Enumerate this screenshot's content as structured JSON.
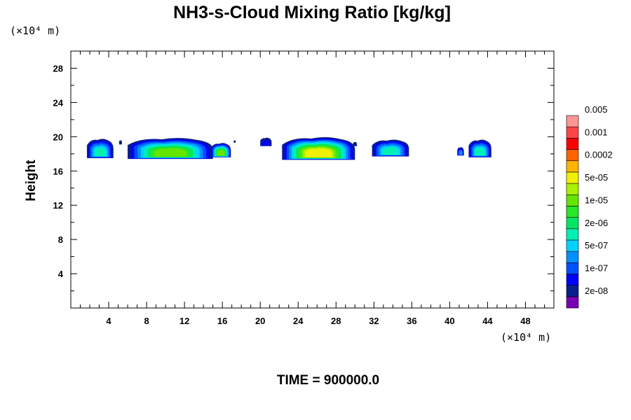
{
  "chart_data": {
    "type": "heatmap",
    "title": "NH3-s-Cloud Mixing Ratio [kg/kg]",
    "ylabel": "Height",
    "xlabel": "",
    "x_unit": "(×10⁴ m)",
    "y_unit": "(×10⁴ m)",
    "xlim": [
      0,
      51
    ],
    "ylim": [
      0,
      30
    ],
    "x_ticks": [
      4,
      8,
      12,
      16,
      20,
      24,
      28,
      32,
      36,
      40,
      44,
      48
    ],
    "y_ticks": [
      4,
      8,
      12,
      16,
      20,
      24,
      28
    ],
    "time_label": "TIME = 900000.0",
    "colorbar": {
      "colors": [
        "#7a00b4",
        "#0a1e8c",
        "#0000ff",
        "#0050ff",
        "#0090ff",
        "#00d2ff",
        "#00f0b4",
        "#00e664",
        "#28e628",
        "#64e600",
        "#aaf000",
        "#f0f000",
        "#ffb400",
        "#ff6400",
        "#ff0000",
        "#ff4646",
        "#ff9696"
      ],
      "labels": [
        "2e-08",
        "1e-07",
        "5e-07",
        "2e-06",
        "1e-05",
        "5e-05",
        "0.0002",
        "0.001",
        "0.005"
      ]
    },
    "clouds": [
      {
        "x0": 1.7,
        "x1": 4.5,
        "top": 19.8,
        "bottom": 17.5,
        "peak": 6
      },
      {
        "x0": 5.1,
        "x1": 5.4,
        "top": 19.6,
        "bottom": 19.1,
        "peak": 1
      },
      {
        "x0": 6.0,
        "x1": 15.0,
        "top": 19.9,
        "bottom": 17.4,
        "peak": 9
      },
      {
        "x0": 14.8,
        "x1": 16.9,
        "top": 19.3,
        "bottom": 17.6,
        "peak": 9
      },
      {
        "x0": 17.2,
        "x1": 17.4,
        "top": 19.6,
        "bottom": 19.3,
        "peak": 1
      },
      {
        "x0": 20.0,
        "x1": 21.2,
        "top": 19.9,
        "bottom": 18.9,
        "peak": 2
      },
      {
        "x0": 22.3,
        "x1": 30.0,
        "top": 20.0,
        "bottom": 17.3,
        "peak": 11
      },
      {
        "x0": 29.8,
        "x1": 30.2,
        "top": 19.4,
        "bottom": 18.9,
        "peak": 1
      },
      {
        "x0": 31.8,
        "x1": 35.7,
        "top": 19.7,
        "bottom": 17.7,
        "peak": 6
      },
      {
        "x0": 40.8,
        "x1": 41.5,
        "top": 18.8,
        "bottom": 17.8,
        "peak": 4
      },
      {
        "x0": 42.0,
        "x1": 44.4,
        "top": 19.7,
        "bottom": 17.6,
        "peak": 6
      }
    ]
  }
}
